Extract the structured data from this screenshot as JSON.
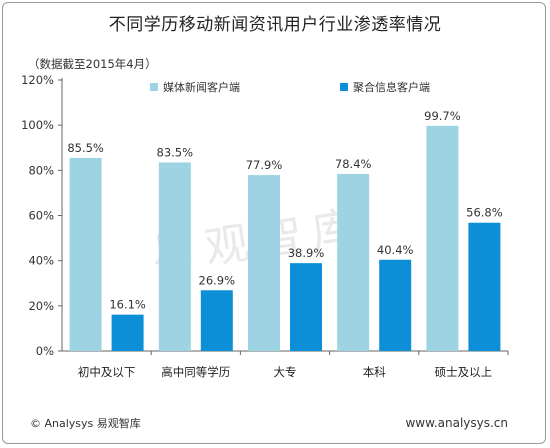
{
  "title": "不同学历移动新闻资讯用户行业渗透率情况",
  "subtitle": "（数据截至2015年4月）",
  "watermark": "易观智库",
  "footer": {
    "left": "© Analysys 易观智库",
    "right": "www.analysys.cn"
  },
  "colors": {
    "series1": "#9dd3e2",
    "series2": "#0d8fd8",
    "axis": "#666666"
  },
  "chart_data": {
    "type": "bar",
    "categories": [
      "初中及以下",
      "高中同等学历",
      "大专",
      "本科",
      "硕士及以上"
    ],
    "series": [
      {
        "name": "媒体新闻客户端",
        "values": [
          85.5,
          83.5,
          77.9,
          78.4,
          99.7
        ],
        "labels": [
          "85.5%",
          "83.5%",
          "77.9%",
          "78.4%",
          "99.7%"
        ]
      },
      {
        "name": "聚合信息客户端",
        "values": [
          16.1,
          26.9,
          38.9,
          40.4,
          56.8
        ],
        "labels": [
          "16.1%",
          "26.9%",
          "38.9%",
          "40.4%",
          "56.8%"
        ]
      }
    ],
    "yticks": [
      "0%",
      "20%",
      "40%",
      "60%",
      "80%",
      "100%",
      "120%"
    ],
    "ylim": [
      0,
      120
    ],
    "legend_position": "top",
    "grid": false
  }
}
